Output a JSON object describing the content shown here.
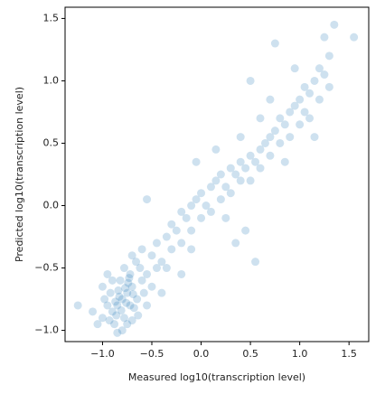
{
  "chart_data": {
    "type": "scatter",
    "x_label": "Measured log10(transcription level)",
    "y_label": "Predicted log10(transcription level)",
    "color": "#1f77b4",
    "alpha": 0.22,
    "xlim": [
      -1.38,
      1.7
    ],
    "ylim": [
      -1.09,
      1.59
    ],
    "xticks": [
      {
        "value": -1.0,
        "label": "−1.0"
      },
      {
        "value": -0.5,
        "label": "−0.5"
      },
      {
        "value": 0.0,
        "label": "0.0"
      },
      {
        "value": 0.5,
        "label": "0.5"
      },
      {
        "value": 1.0,
        "label": "1.0"
      },
      {
        "value": 1.5,
        "label": "1.5"
      }
    ],
    "yticks": [
      {
        "value": -1.0,
        "label": "−1.0"
      },
      {
        "value": -0.5,
        "label": "−0.5"
      },
      {
        "value": 0.0,
        "label": "0.0"
      },
      {
        "value": 0.5,
        "label": "0.5"
      },
      {
        "value": 1.0,
        "label": "1.0"
      },
      {
        "value": 1.5,
        "label": "1.5"
      }
    ],
    "x": [
      -0.85,
      -0.8,
      -0.75,
      -0.9,
      -0.7,
      -0.78,
      -0.95,
      -0.82,
      -0.65,
      -0.72,
      -0.88,
      -1.0,
      -0.6,
      -0.68,
      -0.92,
      -0.76,
      -0.84,
      -0.7,
      -0.98,
      -0.62,
      -0.58,
      -0.86,
      -0.74,
      -0.8,
      -1.05,
      -0.66,
      -0.55,
      -0.9,
      -0.78,
      -0.72,
      -0.83,
      -0.77,
      -0.69,
      -0.87,
      -0.93,
      -0.64,
      -0.81,
      -0.73,
      -1.1,
      -1.25,
      -0.5,
      -0.45,
      -0.6,
      -0.95,
      -0.85,
      -0.7,
      -0.55,
      -0.4,
      -1.0,
      -0.75,
      -0.5,
      -0.45,
      -0.4,
      -0.35,
      -0.3,
      -0.3,
      -0.25,
      -0.2,
      -0.2,
      -0.15,
      -0.1,
      -0.1,
      -0.05,
      0.0,
      0.0,
      0.05,
      0.1,
      0.1,
      0.15,
      0.2,
      0.2,
      0.25,
      0.3,
      0.3,
      0.35,
      0.4,
      0.4,
      0.45,
      0.5,
      0.5,
      0.55,
      0.6,
      0.6,
      0.65,
      0.7,
      0.7,
      0.75,
      0.8,
      0.8,
      0.85,
      0.9,
      0.9,
      0.95,
      1.0,
      1.0,
      1.05,
      1.05,
      1.1,
      1.1,
      1.15,
      1.2,
      1.2,
      1.25,
      1.3,
      1.3,
      1.35,
      1.55,
      0.75,
      0.5,
      0.35,
      0.55,
      -0.2,
      -0.55,
      -0.35,
      0.45,
      0.85,
      1.15,
      -0.05,
      0.15,
      0.7,
      0.95,
      1.25,
      0.25,
      -0.1,
      0.6,
      0.4
    ],
    "values": [
      -0.8,
      -0.75,
      -0.7,
      -0.85,
      -0.65,
      -0.9,
      -0.8,
      -0.6,
      -0.75,
      -0.55,
      -0.95,
      -0.9,
      -0.6,
      -0.82,
      -0.7,
      -0.78,
      -0.68,
      -0.92,
      -0.75,
      -0.5,
      -0.7,
      -0.88,
      -0.62,
      -1.0,
      -0.95,
      -0.45,
      -0.55,
      -0.6,
      -0.5,
      -0.8,
      -0.73,
      -0.66,
      -0.71,
      -0.77,
      -0.92,
      -0.88,
      -0.84,
      -0.58,
      -0.85,
      -0.8,
      -0.65,
      -0.5,
      -0.35,
      -0.55,
      -1.02,
      -0.4,
      -0.8,
      -0.7,
      -0.65,
      -0.95,
      -0.4,
      -0.3,
      -0.45,
      -0.25,
      -0.35,
      -0.15,
      -0.2,
      -0.3,
      -0.05,
      -0.1,
      0.0,
      -0.2,
      0.05,
      0.1,
      -0.1,
      0.0,
      0.15,
      -0.05,
      0.2,
      0.05,
      0.25,
      0.15,
      0.3,
      0.1,
      0.25,
      0.2,
      0.35,
      0.3,
      0.4,
      0.2,
      0.35,
      0.45,
      0.3,
      0.5,
      0.55,
      0.4,
      0.6,
      0.5,
      0.7,
      0.65,
      0.75,
      0.55,
      0.8,
      0.85,
      0.65,
      0.75,
      0.95,
      0.9,
      0.7,
      1.0,
      0.85,
      1.1,
      1.05,
      1.2,
      0.95,
      1.45,
      1.35,
      1.3,
      1.0,
      -0.3,
      -0.45,
      -0.55,
      0.05,
      -0.5,
      -0.2,
      0.35,
      0.55,
      0.35,
      0.45,
      0.85,
      1.1,
      1.35,
      -0.1,
      -0.35,
      0.7,
      0.55
    ]
  }
}
